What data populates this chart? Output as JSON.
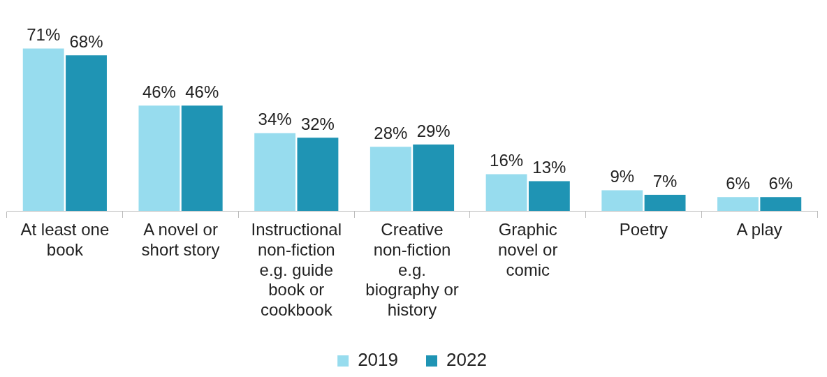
{
  "chart_data": {
    "type": "bar",
    "categories": [
      "At least one book",
      "A novel or short story",
      "Instructional non-fiction e.g. guide book or cookbook",
      "Creative non-fiction e.g. biography or history",
      "Graphic novel or comic",
      "Poetry",
      "A play"
    ],
    "series": [
      {
        "name": "2019",
        "color": "#97dcee",
        "values": [
          71,
          46,
          34,
          28,
          16,
          9,
          6
        ],
        "value_labels": [
          "71%",
          "46%",
          "34%",
          "28%",
          "16%",
          "9%",
          "6%"
        ]
      },
      {
        "name": "2022",
        "color": "#1f94b4",
        "values": [
          68,
          46,
          32,
          29,
          13,
          7,
          6
        ],
        "value_labels": [
          "68%",
          "46%",
          "32%",
          "29%",
          "13%",
          "7%",
          "6%"
        ]
      }
    ],
    "tick_labels": "x",
    "grid": false,
    "legend": "bottom"
  }
}
